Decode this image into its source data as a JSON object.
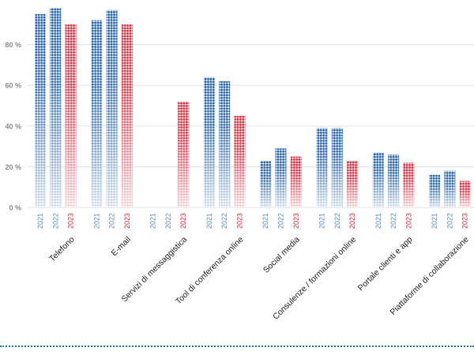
{
  "chart_data": {
    "type": "bar",
    "categories": [
      "Telefono",
      "E-mail",
      "Servizi di messaggistica",
      "Tool di conferenza online",
      "Social media",
      "Consulenze / formazioni online",
      "Portale clienti e app",
      "Piattaforme di collaborazione"
    ],
    "series": [
      {
        "name": "2021",
        "values": [
          95,
          92,
          null,
          64,
          23,
          39,
          27,
          16
        ]
      },
      {
        "name": "2022",
        "values": [
          98,
          97,
          null,
          62,
          29,
          39,
          26,
          18
        ]
      },
      {
        "name": "2023",
        "values": [
          90,
          90,
          52,
          45,
          25,
          23,
          22,
          13
        ]
      }
    ],
    "y_ticks": [
      0,
      20,
      40,
      60,
      80
    ],
    "y_tick_labels": [
      "0 %",
      "20 %",
      "40 %",
      "60 %",
      "80 %"
    ],
    "ylim": [
      0,
      100
    ],
    "grid": true,
    "colors": {
      "2021": "#1f5fa8",
      "2022": "#1f5fa8",
      "2023": "#d8283a",
      "grid": "#e3e3e3",
      "bottom_rule": "#1f6fb0"
    }
  }
}
